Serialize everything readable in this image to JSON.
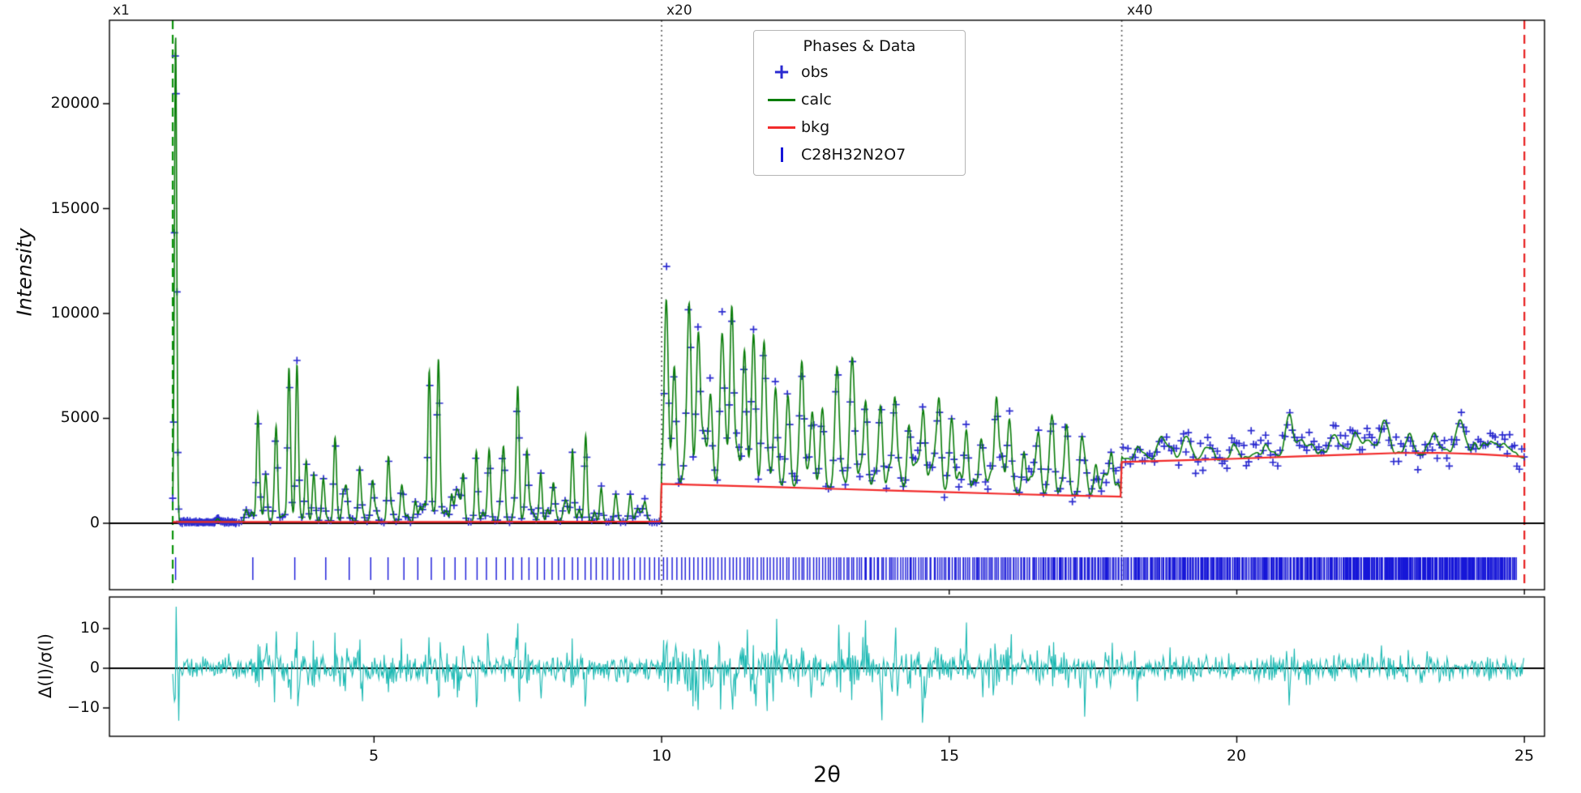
{
  "figure": {
    "background": "#ffffff"
  },
  "chart_data": {
    "type": "line",
    "subtype": "rietveld-refinement-profile",
    "title": "",
    "xlabel": "2θ",
    "x_range": [
      0.4,
      25.35
    ],
    "x_tick_values": [
      5,
      10,
      15,
      20,
      25
    ],
    "x_tick_labels": [
      "5",
      "10",
      "15",
      "20",
      "25"
    ],
    "top_panel": {
      "ylabel": "Intensity",
      "y_tick_values": [
        20000,
        15000,
        10000,
        5000,
        0
      ],
      "y_tick_labels": [
        "20000",
        "15000",
        "10000",
        "5000",
        "0"
      ],
      "y_max": 24000
    },
    "bottom_panel": {
      "ylabel": "Δ(I)/σ(I)",
      "y_tick_values": [
        10,
        0,
        -10
      ],
      "y_tick_labels": [
        "10",
        "0",
        "−10"
      ]
    },
    "regions": [
      {
        "label": "x1",
        "xmin": 1.5,
        "xmax": 10
      },
      {
        "label": "x20",
        "xmin": 10,
        "xmax": 18
      },
      {
        "label": "x40",
        "xmin": 18,
        "xmax": 25
      }
    ],
    "guides": {
      "green_dashed_x": 1.5,
      "red_dashed_x": 25,
      "dotted_x": [
        10,
        18
      ]
    },
    "legend": {
      "title": "Phases & Data",
      "entries": [
        {
          "label": "obs",
          "marker": "plus"
        },
        {
          "label": "calc",
          "marker": "line"
        },
        {
          "label": "bkg",
          "marker": "line"
        },
        {
          "label": "C28H32N2O7",
          "marker": "tick"
        }
      ]
    },
    "colors": {
      "obs": "#2b2bd0",
      "calc": "#0a7d0a",
      "bkg": "#f22b2b",
      "reflections": "#1616d8",
      "residual": "#18b8b2",
      "guide_green": "#0a930a",
      "guide_red": "#e82020",
      "guide_dotted": "#5a5a5a",
      "axis": "#000000"
    },
    "background_anchors": [
      [
        1.45,
        60
      ],
      [
        6,
        65
      ],
      [
        9.98,
        80
      ],
      [
        10,
        1880
      ],
      [
        11,
        1800
      ],
      [
        12,
        1720
      ],
      [
        13,
        1640
      ],
      [
        14,
        1560
      ],
      [
        15,
        1480
      ],
      [
        16,
        1400
      ],
      [
        17,
        1330
      ],
      [
        17.98,
        1270
      ],
      [
        18,
        2920
      ],
      [
        19,
        3000
      ],
      [
        20,
        3080
      ],
      [
        21,
        3180
      ],
      [
        22,
        3280
      ],
      [
        22.8,
        3350
      ],
      [
        23.5,
        3360
      ],
      [
        24.2,
        3300
      ],
      [
        25,
        3170
      ]
    ],
    "peaks": [
      [
        1.55,
        23200,
        0.02
      ],
      [
        2.98,
        5050
      ],
      [
        3.12,
        2000
      ],
      [
        3.3,
        4200
      ],
      [
        3.52,
        6900
      ],
      [
        3.66,
        6600
      ],
      [
        3.82,
        2400
      ],
      [
        3.95,
        2000
      ],
      [
        4.12,
        1400
      ],
      [
        4.32,
        3600
      ],
      [
        4.52,
        1500
      ],
      [
        4.75,
        2300
      ],
      [
        4.98,
        1700
      ],
      [
        5.25,
        3100
      ],
      [
        5.48,
        1500
      ],
      [
        5.72,
        1000
      ],
      [
        5.96,
        7200
      ],
      [
        6.12,
        7450
      ],
      [
        6.35,
        1300
      ],
      [
        6.55,
        2100
      ],
      [
        6.78,
        2800
      ],
      [
        7.0,
        2300
      ],
      [
        7.25,
        2500
      ],
      [
        7.5,
        6200
      ],
      [
        7.66,
        3300
      ],
      [
        7.9,
        2000
      ],
      [
        8.12,
        1700
      ],
      [
        8.45,
        3400
      ],
      [
        8.68,
        4100
      ],
      [
        8.95,
        1600
      ],
      [
        9.2,
        1200
      ],
      [
        9.45,
        800
      ],
      [
        9.7,
        600
      ],
      [
        10.08,
        7300
      ],
      [
        10.22,
        5600
      ],
      [
        10.48,
        7900
      ],
      [
        10.64,
        5100
      ],
      [
        10.85,
        4300
      ],
      [
        11.05,
        6400
      ],
      [
        11.22,
        8500
      ],
      [
        11.44,
        6100
      ],
      [
        11.6,
        7000
      ],
      [
        11.78,
        6600
      ],
      [
        11.98,
        4600
      ],
      [
        12.2,
        3900
      ],
      [
        12.44,
        4900
      ],
      [
        12.62,
        3600
      ],
      [
        12.8,
        3100
      ],
      [
        13.05,
        4100
      ],
      [
        13.3,
        3100
      ],
      [
        13.55,
        2900
      ],
      [
        13.8,
        3400
      ],
      [
        14.05,
        3900
      ],
      [
        14.3,
        3100
      ],
      [
        14.55,
        2700
      ],
      [
        14.82,
        3300
      ],
      [
        15.05,
        2900
      ],
      [
        15.3,
        2500
      ],
      [
        15.55,
        2300
      ],
      [
        15.82,
        4300
      ],
      [
        16.05,
        2400
      ],
      [
        16.3,
        2000
      ],
      [
        16.55,
        2100
      ],
      [
        16.8,
        2300
      ],
      [
        17.05,
        2000
      ],
      [
        17.3,
        1700
      ],
      [
        17.55,
        1500
      ],
      [
        17.82,
        1300
      ],
      [
        18.3,
        500
      ],
      [
        18.7,
        450
      ],
      [
        19.1,
        650
      ],
      [
        19.55,
        550
      ],
      [
        20,
        450
      ],
      [
        20.5,
        550
      ],
      [
        20.92,
        1900
      ],
      [
        21.3,
        550
      ],
      [
        21.7,
        450
      ],
      [
        22.1,
        550
      ],
      [
        22.6,
        1150
      ],
      [
        23,
        550
      ],
      [
        23.4,
        650
      ],
      [
        23.9,
        950
      ],
      [
        24.3,
        450
      ],
      [
        24.7,
        350
      ]
    ],
    "minor_peaks": [
      {
        "seed": 7,
        "count": 90,
        "xmin": 2.2,
        "xmax": 9.9,
        "hmin": 60,
        "hmax": 600
      },
      {
        "seed": 11,
        "count": 120,
        "xmin": 10.02,
        "xmax": 17.95,
        "hmin": 150,
        "hmax": 900
      },
      {
        "seed": 19,
        "count": 60,
        "xmin": 18.05,
        "xmax": 24.95,
        "hmin": 60,
        "hmax": 350
      }
    ],
    "calc_ripple": {
      "seed": 41,
      "xmin": 17.98,
      "step": 0.07,
      "amplitude": 170
    },
    "obs": {
      "seed": 13,
      "step": 0.042,
      "fine_step": 0.015,
      "fine_below": 2.6,
      "sigma": [
        35,
        240,
        270
      ]
    },
    "residual": {
      "seed": 29,
      "step": 0.015,
      "base_sigma": 1.4,
      "peak_sigma": 4.2,
      "env_norm": 2500
    },
    "residual_spikes": [
      [
        1.56,
        15.5
      ],
      [
        1.61,
        -13.2
      ],
      [
        2.98,
        6
      ],
      [
        3.3,
        9.3
      ],
      [
        3.55,
        -7.8
      ],
      [
        3.95,
        7
      ],
      [
        4.32,
        9
      ],
      [
        4.8,
        -8.3
      ],
      [
        5.25,
        -6
      ],
      [
        5.96,
        7.8
      ],
      [
        6.12,
        -7.2
      ],
      [
        6.98,
        8.8
      ],
      [
        7.5,
        11.3
      ],
      [
        7.9,
        -7.6
      ],
      [
        8.45,
        7.5
      ],
      [
        8.68,
        -6.8
      ],
      [
        10.1,
        6.5
      ],
      [
        10.5,
        -5.5
      ],
      [
        11.22,
        -6.2
      ],
      [
        11.6,
        5.8
      ],
      [
        12.44,
        5.2
      ],
      [
        13.05,
        -4.8
      ],
      [
        14.05,
        4.6
      ],
      [
        15.82,
        -4.4
      ],
      [
        17,
        4
      ]
    ],
    "reflections": {
      "seed": 3,
      "count": 640,
      "scale": 2.886,
      "exponent": 0.3333,
      "jitter": 0.015,
      "extra": [
        1.55
      ]
    }
  }
}
